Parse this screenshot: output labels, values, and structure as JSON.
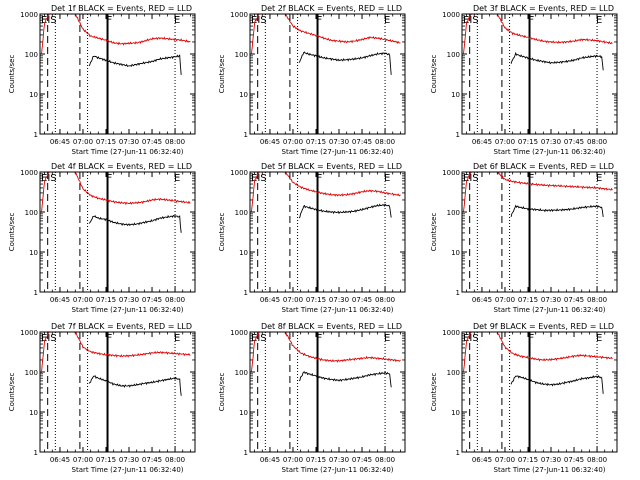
{
  "figure": {
    "xlabel": "Start Time (27-Jun-11 06:32:40)",
    "ylabel": "Counts/sec",
    "title_suffix": " BLACK = Events, RED = LLD",
    "x_tick_labels": [
      "06:45",
      "07:00",
      "07:15",
      "07:30",
      "07:45",
      "08:00"
    ],
    "y_tick_labels": [
      "1",
      "10",
      "100",
      "1000"
    ],
    "marker_labels": [
      "EIS",
      "F",
      "E"
    ],
    "series_colors": {
      "events": "#000000",
      "lld": "#dd0000"
    }
  },
  "chart_data": [
    {
      "type": "line",
      "title": "Det 1f BLACK = Events, RED = LLD",
      "xlabel": "Start Time (27-Jun-11 06:32:40)",
      "ylabel": "Counts/sec",
      "xlim": [
        "06:32",
        "08:13"
      ],
      "ylim": [
        1,
        1000
      ],
      "y_scale": "log",
      "markers": {
        "dotted": [
          "06:42",
          "07:03",
          "08:00"
        ],
        "dashed": [
          "06:37",
          "06:58"
        ],
        "solid": [
          "07:16"
        ]
      },
      "series": [
        {
          "name": "RED",
          "x": [
            "06:33",
            "06:35",
            "06:38",
            "06:40",
            "06:55",
            "07:00",
            "07:05",
            "07:10",
            "07:15",
            "07:20",
            "07:25",
            "07:30",
            "07:35",
            "07:40",
            "07:45",
            "07:50",
            "07:55",
            "08:00",
            "08:05",
            "08:10"
          ],
          "y": [
            100,
            600,
            1000,
            1000,
            1000,
            420,
            280,
            250,
            220,
            190,
            180,
            185,
            190,
            210,
            240,
            250,
            240,
            230,
            220,
            200
          ]
        },
        {
          "name": "BLACK",
          "x": [
            "07:04",
            "07:07",
            "07:10",
            "07:15",
            "07:20",
            "07:25",
            "07:30",
            "07:35",
            "07:40",
            "07:45",
            "07:50",
            "07:55",
            "08:00",
            "08:03",
            "08:04"
          ],
          "y": [
            50,
            90,
            80,
            70,
            60,
            55,
            50,
            55,
            60,
            65,
            75,
            80,
            85,
            90,
            30
          ]
        }
      ]
    },
    {
      "type": "line",
      "title": "Det 2f BLACK = Events, RED = LLD",
      "xlabel": "Start Time (27-Jun-11 06:32:40)",
      "ylabel": "Counts/sec",
      "xlim": [
        "06:32",
        "08:13"
      ],
      "ylim": [
        1,
        1000
      ],
      "y_scale": "log",
      "markers": {
        "dotted": [
          "06:42",
          "07:03",
          "08:00"
        ],
        "dashed": [
          "06:37",
          "06:58"
        ],
        "solid": [
          "07:16"
        ]
      },
      "series": [
        {
          "name": "RED",
          "x": [
            "06:33",
            "06:35",
            "06:38",
            "06:40",
            "06:55",
            "07:00",
            "07:05",
            "07:10",
            "07:15",
            "07:20",
            "07:25",
            "07:30",
            "07:35",
            "07:40",
            "07:45",
            "07:50",
            "07:55",
            "08:00",
            "08:05",
            "08:10"
          ],
          "y": [
            100,
            600,
            1000,
            1000,
            1000,
            500,
            380,
            330,
            290,
            250,
            220,
            210,
            200,
            210,
            230,
            260,
            250,
            230,
            210,
            190
          ]
        },
        {
          "name": "BLACK",
          "x": [
            "07:04",
            "07:07",
            "07:10",
            "07:15",
            "07:20",
            "07:25",
            "07:30",
            "07:35",
            "07:40",
            "07:45",
            "07:50",
            "07:55",
            "08:00",
            "08:03",
            "08:04"
          ],
          "y": [
            60,
            110,
            100,
            90,
            80,
            75,
            70,
            72,
            75,
            80,
            90,
            100,
            105,
            95,
            30
          ]
        }
      ]
    },
    {
      "type": "line",
      "title": "Det 3f BLACK = Events, RED = LLD",
      "xlabel": "Start Time (27-Jun-11 06:32:40)",
      "ylabel": "Counts/sec",
      "xlim": [
        "06:32",
        "08:13"
      ],
      "ylim": [
        1,
        1000
      ],
      "y_scale": "log",
      "markers": {
        "dotted": [
          "06:42",
          "07:03",
          "08:00"
        ],
        "dashed": [
          "06:37",
          "06:58"
        ],
        "solid": [
          "07:16"
        ]
      },
      "series": [
        {
          "name": "RED",
          "x": [
            "06:33",
            "06:35",
            "06:38",
            "06:40",
            "06:55",
            "07:00",
            "07:05",
            "07:10",
            "07:15",
            "07:20",
            "07:25",
            "07:30",
            "07:35",
            "07:40",
            "07:45",
            "07:50",
            "07:55",
            "08:00",
            "08:05",
            "08:10"
          ],
          "y": [
            100,
            600,
            1000,
            1000,
            1000,
            450,
            330,
            290,
            260,
            230,
            210,
            200,
            195,
            200,
            210,
            230,
            225,
            215,
            200,
            185
          ]
        },
        {
          "name": "BLACK",
          "x": [
            "07:04",
            "07:07",
            "07:10",
            "07:15",
            "07:20",
            "07:25",
            "07:30",
            "07:35",
            "07:40",
            "07:45",
            "07:50",
            "07:55",
            "08:00",
            "08:03",
            "08:04"
          ],
          "y": [
            60,
            100,
            90,
            80,
            70,
            65,
            60,
            62,
            65,
            70,
            80,
            85,
            90,
            85,
            40
          ]
        }
      ]
    },
    {
      "type": "line",
      "title": "Det 4f BLACK = Events, RED = LLD",
      "xlabel": "Start Time (27-Jun-11 06:32:40)",
      "ylabel": "Counts/sec",
      "xlim": [
        "06:32",
        "08:13"
      ],
      "ylim": [
        1,
        1000
      ],
      "y_scale": "log",
      "markers": {
        "dotted": [
          "06:42",
          "07:03",
          "08:00"
        ],
        "dashed": [
          "06:37",
          "06:58"
        ],
        "solid": [
          "07:16"
        ]
      },
      "series": [
        {
          "name": "RED",
          "x": [
            "06:33",
            "06:35",
            "06:38",
            "06:40",
            "06:55",
            "07:00",
            "07:05",
            "07:10",
            "07:15",
            "07:20",
            "07:25",
            "07:30",
            "07:35",
            "07:40",
            "07:45",
            "07:50",
            "07:55",
            "08:00",
            "08:05",
            "08:10"
          ],
          "y": [
            100,
            600,
            1000,
            1000,
            1000,
            380,
            260,
            220,
            200,
            180,
            170,
            165,
            170,
            180,
            200,
            210,
            200,
            190,
            180,
            170
          ]
        },
        {
          "name": "BLACK",
          "x": [
            "07:04",
            "07:07",
            "07:10",
            "07:15",
            "07:20",
            "07:25",
            "07:30",
            "07:35",
            "07:40",
            "07:45",
            "07:50",
            "07:55",
            "08:00",
            "08:03",
            "08:04"
          ],
          "y": [
            50,
            80,
            70,
            65,
            55,
            50,
            48,
            50,
            55,
            60,
            70,
            75,
            80,
            75,
            30
          ]
        }
      ]
    },
    {
      "type": "line",
      "title": "Det 5f BLACK = Events, RED = LLD",
      "xlabel": "Start Time (27-Jun-11 06:32:40)",
      "ylabel": "Counts/sec",
      "xlim": [
        "06:32",
        "08:13"
      ],
      "ylim": [
        1,
        1000
      ],
      "y_scale": "log",
      "markers": {
        "dotted": [
          "06:42",
          "07:03",
          "08:00"
        ],
        "dashed": [
          "06:37",
          "06:58"
        ],
        "solid": [
          "07:16"
        ]
      },
      "series": [
        {
          "name": "RED",
          "x": [
            "06:33",
            "06:35",
            "06:38",
            "06:40",
            "06:55",
            "07:00",
            "07:05",
            "07:10",
            "07:15",
            "07:20",
            "07:25",
            "07:30",
            "07:35",
            "07:40",
            "07:45",
            "07:50",
            "07:55",
            "08:00",
            "08:05",
            "08:10"
          ],
          "y": [
            100,
            600,
            1000,
            1000,
            1000,
            550,
            420,
            360,
            320,
            290,
            270,
            265,
            270,
            290,
            320,
            340,
            330,
            300,
            280,
            260
          ]
        },
        {
          "name": "BLACK",
          "x": [
            "07:04",
            "07:07",
            "07:10",
            "07:15",
            "07:20",
            "07:25",
            "07:30",
            "07:35",
            "07:40",
            "07:45",
            "07:50",
            "07:55",
            "08:00",
            "08:03",
            "08:04"
          ],
          "y": [
            70,
            140,
            130,
            115,
            105,
            100,
            98,
            100,
            105,
            115,
            130,
            145,
            150,
            140,
            70
          ]
        }
      ]
    },
    {
      "type": "line",
      "title": "Det 6f BLACK = Events, RED = LLD",
      "xlabel": "Start Time (27-Jun-11 06:32:40)",
      "ylabel": "Counts/sec",
      "xlim": [
        "06:32",
        "08:13"
      ],
      "ylim": [
        1,
        1000
      ],
      "y_scale": "log",
      "markers": {
        "dotted": [
          "06:42",
          "07:03",
          "08:00"
        ],
        "dashed": [
          "06:37",
          "06:58"
        ],
        "solid": [
          "07:16"
        ]
      },
      "series": [
        {
          "name": "RED",
          "x": [
            "06:33",
            "06:35",
            "06:38",
            "06:40",
            "06:55",
            "07:00",
            "07:05",
            "07:10",
            "07:15",
            "07:20",
            "07:25",
            "07:30",
            "07:35",
            "07:40",
            "07:45",
            "07:50",
            "07:55",
            "08:00",
            "08:05",
            "08:10"
          ],
          "y": [
            100,
            600,
            1000,
            1000,
            1000,
            650,
            580,
            540,
            510,
            490,
            470,
            460,
            450,
            440,
            430,
            420,
            410,
            400,
            380,
            360
          ]
        },
        {
          "name": "BLACK",
          "x": [
            "07:04",
            "07:07",
            "07:10",
            "07:15",
            "07:20",
            "07:25",
            "07:30",
            "07:35",
            "07:40",
            "07:45",
            "07:50",
            "07:55",
            "08:00",
            "08:03",
            "08:04"
          ],
          "y": [
            80,
            140,
            130,
            120,
            115,
            110,
            110,
            112,
            115,
            120,
            130,
            135,
            140,
            130,
            80
          ]
        }
      ]
    },
    {
      "type": "line",
      "title": "Det 7f BLACK = Events, RED = LLD",
      "xlabel": "Start Time (27-Jun-11 06:32:40)",
      "ylabel": "Counts/sec",
      "xlim": [
        "06:32",
        "08:13"
      ],
      "ylim": [
        1,
        1000
      ],
      "y_scale": "log",
      "markers": {
        "dotted": [
          "06:42",
          "07:03",
          "08:00"
        ],
        "dashed": [
          "06:37",
          "06:58"
        ],
        "solid": [
          "07:16"
        ]
      },
      "series": [
        {
          "name": "RED",
          "x": [
            "06:33",
            "06:35",
            "06:38",
            "06:40",
            "06:55",
            "07:00",
            "07:05",
            "07:10",
            "07:15",
            "07:20",
            "07:25",
            "07:30",
            "07:35",
            "07:40",
            "07:45",
            "07:50",
            "07:55",
            "08:00",
            "08:05",
            "08:10"
          ],
          "y": [
            100,
            600,
            1000,
            1000,
            1000,
            420,
            320,
            290,
            270,
            260,
            250,
            255,
            265,
            280,
            300,
            310,
            300,
            290,
            280,
            270
          ]
        },
        {
          "name": "BLACK",
          "x": [
            "07:04",
            "07:07",
            "07:10",
            "07:15",
            "07:20",
            "07:25",
            "07:30",
            "07:35",
            "07:40",
            "07:45",
            "07:50",
            "07:55",
            "08:00",
            "08:03",
            "08:04"
          ],
          "y": [
            50,
            80,
            70,
            60,
            50,
            45,
            45,
            48,
            52,
            55,
            60,
            65,
            70,
            65,
            25
          ]
        }
      ]
    },
    {
      "type": "line",
      "title": "Det 8f BLACK = Events, RED = LLD",
      "xlabel": "Start Time (27-Jun-11 06:32:40)",
      "ylabel": "Counts/sec",
      "xlim": [
        "06:32",
        "08:13"
      ],
      "ylim": [
        1,
        1000
      ],
      "y_scale": "log",
      "markers": {
        "dotted": [
          "06:42",
          "07:03",
          "08:00"
        ],
        "dashed": [
          "06:37",
          "06:58"
        ],
        "solid": [
          "07:16"
        ]
      },
      "series": [
        {
          "name": "RED",
          "x": [
            "06:33",
            "06:35",
            "06:38",
            "06:40",
            "06:55",
            "07:00",
            "07:05",
            "07:10",
            "07:15",
            "07:20",
            "07:25",
            "07:30",
            "07:35",
            "07:40",
            "07:45",
            "07:50",
            "07:55",
            "08:00",
            "08:05",
            "08:10"
          ],
          "y": [
            100,
            600,
            1000,
            1000,
            1000,
            450,
            300,
            250,
            220,
            200,
            190,
            190,
            200,
            210,
            220,
            230,
            220,
            210,
            200,
            190
          ]
        },
        {
          "name": "BLACK",
          "x": [
            "07:04",
            "07:07",
            "07:10",
            "07:15",
            "07:20",
            "07:25",
            "07:30",
            "07:35",
            "07:40",
            "07:45",
            "07:50",
            "07:55",
            "08:00",
            "08:03",
            "08:04"
          ],
          "y": [
            60,
            100,
            90,
            80,
            70,
            65,
            62,
            65,
            70,
            75,
            85,
            90,
            95,
            90,
            40
          ]
        }
      ]
    },
    {
      "type": "line",
      "title": "Det 9f BLACK = Events, RED = LLD",
      "xlabel": "Start Time (27-Jun-11 06:32:40)",
      "ylabel": "Counts/sec",
      "xlim": [
        "06:32",
        "08:13"
      ],
      "ylim": [
        1,
        1000
      ],
      "y_scale": "log",
      "markers": {
        "dotted": [
          "06:42",
          "07:03",
          "08:00"
        ],
        "dashed": [
          "06:37",
          "06:58"
        ],
        "solid": [
          "07:16"
        ]
      },
      "series": [
        {
          "name": "RED",
          "x": [
            "06:33",
            "06:35",
            "06:38",
            "06:40",
            "06:55",
            "07:00",
            "07:05",
            "07:10",
            "07:15",
            "07:20",
            "07:25",
            "07:30",
            "07:35",
            "07:40",
            "07:45",
            "07:50",
            "07:55",
            "08:00",
            "08:05",
            "08:10"
          ],
          "y": [
            100,
            600,
            1000,
            1000,
            1000,
            420,
            290,
            250,
            230,
            210,
            200,
            205,
            215,
            230,
            250,
            260,
            250,
            240,
            230,
            220
          ]
        },
        {
          "name": "BLACK",
          "x": [
            "07:04",
            "07:07",
            "07:10",
            "07:15",
            "07:20",
            "07:25",
            "07:30",
            "07:35",
            "07:40",
            "07:45",
            "07:50",
            "07:55",
            "08:00",
            "08:03",
            "08:04"
          ],
          "y": [
            50,
            80,
            75,
            65,
            55,
            50,
            48,
            50,
            55,
            60,
            68,
            72,
            78,
            72,
            30
          ]
        }
      ]
    }
  ]
}
